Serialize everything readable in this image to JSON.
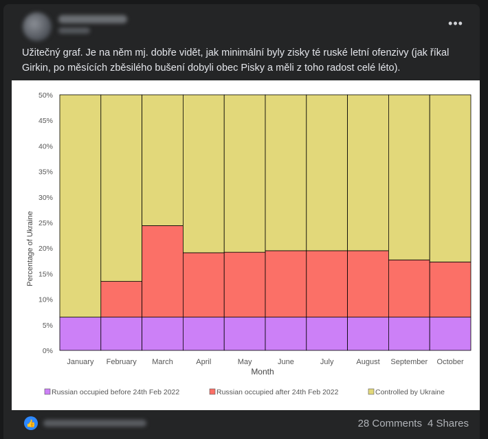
{
  "post": {
    "caption": "Užitečný graf. Je na něm mj. dobře vidět, jak minimální byly zisky té ruské letní ofenzivy (jak říkal Girkin, po měsících zběsilého bušení dobyli obec Pisky a měli z toho radost celé léto).",
    "more_icon": "more-horizontal-icon",
    "comments": "28 Comments",
    "shares": "4 Shares",
    "reaction_icon": "like-icon"
  },
  "colors": {
    "before": "#cc80f7",
    "after": "#fb7067",
    "ukraine": "#e2d87a"
  },
  "chart_data": {
    "type": "bar",
    "stacked": true,
    "categories": [
      "January",
      "February",
      "March",
      "April",
      "May",
      "June",
      "July",
      "August",
      "September",
      "October"
    ],
    "series": [
      {
        "name": "Russian occupied before 24th Feb 2022",
        "values": [
          6.5,
          6.5,
          6.5,
          6.5,
          6.5,
          6.5,
          6.5,
          6.5,
          6.5,
          6.5
        ]
      },
      {
        "name": "Russian occupied after 24th Feb 2022",
        "values": [
          0,
          7.0,
          17.9,
          12.6,
          12.7,
          13.0,
          13.0,
          13.0,
          11.2,
          10.8
        ]
      },
      {
        "name": "Controlled by Ukraine",
        "values": [
          43.5,
          36.5,
          25.6,
          30.9,
          30.8,
          30.5,
          30.5,
          30.5,
          32.3,
          32.7
        ]
      }
    ],
    "xlabel": "Month",
    "ylabel": "Percentage of Ukraine",
    "ylim": [
      0,
      50
    ],
    "yticks": [
      "0%",
      "5%",
      "10%",
      "15%",
      "20%",
      "25%",
      "30%",
      "35%",
      "40%",
      "45%",
      "50%"
    ],
    "legend_position": "bottom"
  }
}
